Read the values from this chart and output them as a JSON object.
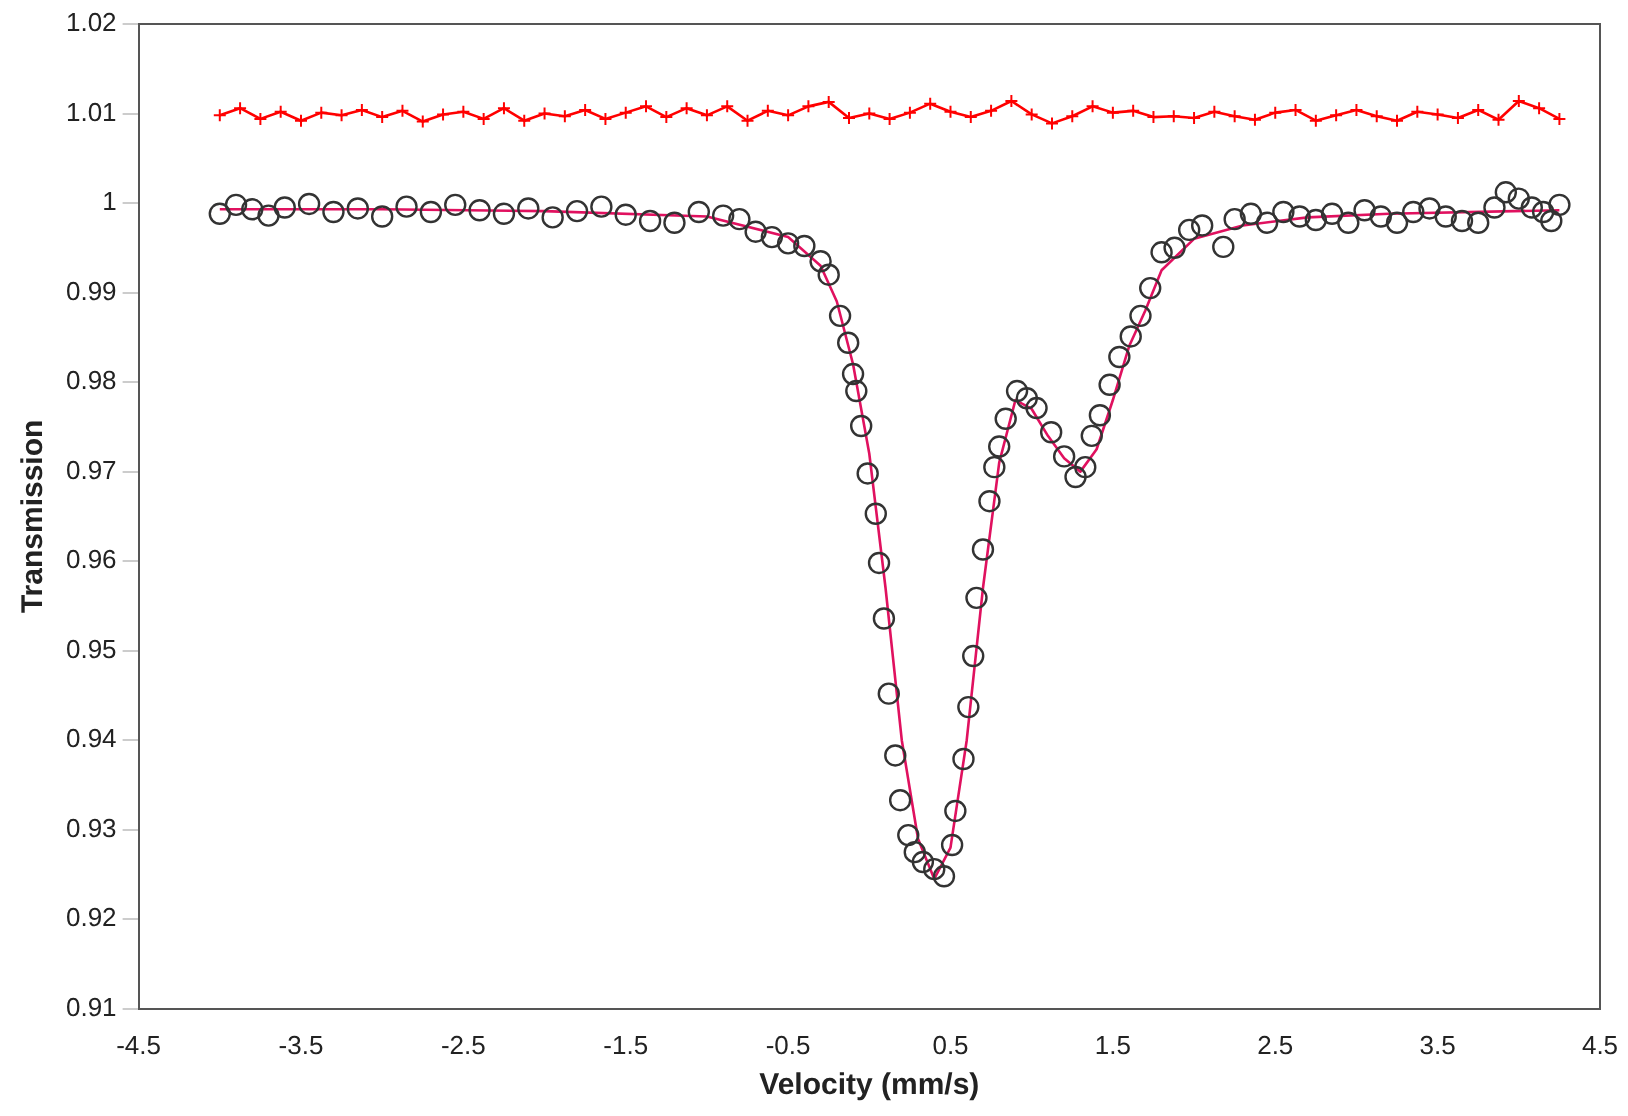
{
  "chart_data": {
    "type": "scatter",
    "xlabel": "Velocity (mm/s)",
    "ylabel": "Transmission",
    "xlim": [
      -4.5,
      4.5
    ],
    "xticks": [
      -4.5,
      -3.5,
      -2.5,
      -1.5,
      -0.5,
      0.5,
      1.5,
      2.5,
      3.5,
      4.5
    ],
    "ylim": [
      0.91,
      1.02
    ],
    "yticks": [
      0.91,
      0.92,
      0.93,
      0.94,
      0.95,
      0.96,
      0.97,
      0.98,
      0.99,
      1,
      1.01,
      1.02
    ],
    "grid": false,
    "legend": false,
    "series": [
      {
        "type": "scatter",
        "marker": "circle",
        "color": "#333333",
        "x": [
          -4.0,
          -3.9,
          -3.8,
          -3.7,
          -3.6,
          -3.45,
          -3.3,
          -3.15,
          -3.0,
          -2.85,
          -2.7,
          -2.55,
          -2.4,
          -2.25,
          -2.1,
          -1.95,
          -1.8,
          -1.65,
          -1.5,
          -1.35,
          -1.2,
          -1.05,
          -0.9,
          -0.8,
          -0.7,
          -0.6,
          -0.5,
          -0.4,
          -0.3,
          -0.25,
          -0.18,
          -0.13,
          -0.1,
          -0.08,
          -0.05,
          -0.01,
          0.04,
          0.06,
          0.09,
          0.12,
          0.16,
          0.19,
          0.24,
          0.28,
          0.33,
          0.4,
          0.46,
          0.51,
          0.53,
          0.58,
          0.61,
          0.64,
          0.66,
          0.7,
          0.74,
          0.77,
          0.8,
          0.84,
          0.91,
          0.97,
          1.03,
          1.12,
          1.2,
          1.27,
          1.33,
          1.37,
          1.42,
          1.48,
          1.54,
          1.61,
          1.67,
          1.73,
          1.8,
          1.88,
          1.97,
          2.05,
          2.18,
          2.25,
          2.35,
          2.45,
          2.55,
          2.65,
          2.75,
          2.85,
          2.95,
          3.05,
          3.15,
          3.25,
          3.35,
          3.45,
          3.55,
          3.65,
          3.75,
          3.85,
          3.92,
          4.0,
          4.08,
          4.15,
          4.2,
          4.25
        ],
        "values": [
          0.9988,
          0.9998,
          0.9993,
          0.9986,
          0.9995,
          0.9999,
          0.999,
          0.9994,
          0.9985,
          0.9996,
          0.999,
          0.9998,
          0.9992,
          0.9988,
          0.9994,
          0.9984,
          0.9991,
          0.9996,
          0.9987,
          0.998,
          0.9978,
          0.999,
          0.9986,
          0.9982,
          0.9968,
          0.9962,
          0.9955,
          0.9952,
          0.9935,
          0.992,
          0.9874,
          0.9844,
          0.9809,
          0.979,
          0.9751,
          0.9698,
          0.9653,
          0.9598,
          0.9536,
          0.9452,
          0.9383,
          0.9333,
          0.9294,
          0.9275,
          0.9264,
          0.9256,
          0.9248,
          0.9283,
          0.9321,
          0.9379,
          0.9437,
          0.9494,
          0.9559,
          0.9613,
          0.9667,
          0.9705,
          0.9728,
          0.9759,
          0.979,
          0.9782,
          0.9771,
          0.9744,
          0.9717,
          0.9694,
          0.9705,
          0.974,
          0.9763,
          0.9797,
          0.9828,
          0.9851,
          0.9874,
          0.9905,
          0.9945,
          0.995,
          0.997,
          0.9975,
          0.9951,
          0.9982,
          0.9988,
          0.9978,
          0.999,
          0.9985,
          0.9981,
          0.9988,
          0.9978,
          0.9992,
          0.9985,
          0.9978,
          0.999,
          0.9994,
          0.9985,
          0.998,
          0.9978,
          0.9995,
          1.0012,
          1.0005,
          0.9995,
          0.999,
          0.998,
          0.9998
        ]
      },
      {
        "type": "line",
        "marker": "none",
        "color": "#e0115f",
        "x": [
          -4.0,
          -3.0,
          -2.0,
          -1.0,
          -0.5,
          -0.3,
          -0.2,
          -0.1,
          0.0,
          0.1,
          0.2,
          0.3,
          0.4,
          0.5,
          0.6,
          0.7,
          0.8,
          0.9,
          1.0,
          1.1,
          1.2,
          1.3,
          1.4,
          1.5,
          1.6,
          1.7,
          1.8,
          2.0,
          2.3,
          2.7,
          3.2,
          4.25
        ],
        "values": [
          0.9993,
          0.9993,
          0.9991,
          0.9985,
          0.9962,
          0.993,
          0.989,
          0.982,
          0.972,
          0.957,
          0.94,
          0.929,
          0.9245,
          0.928,
          0.94,
          0.957,
          0.971,
          0.978,
          0.977,
          0.974,
          0.9715,
          0.97,
          0.9725,
          0.978,
          0.984,
          0.988,
          0.9925,
          0.996,
          0.9975,
          0.9984,
          0.9988,
          0.9992
        ]
      },
      {
        "type": "line",
        "marker": "cross",
        "color": "#ff0000",
        "x": [
          -4.0,
          -3.875,
          -3.75,
          -3.625,
          -3.5,
          -3.375,
          -3.25,
          -3.125,
          -3.0,
          -2.875,
          -2.75,
          -2.625,
          -2.5,
          -2.375,
          -2.25,
          -2.125,
          -2.0,
          -1.875,
          -1.75,
          -1.625,
          -1.5,
          -1.375,
          -1.25,
          -1.125,
          -1.0,
          -0.875,
          -0.75,
          -0.625,
          -0.5,
          -0.375,
          -0.25,
          -0.125,
          0.0,
          0.125,
          0.25,
          0.375,
          0.5,
          0.625,
          0.75,
          0.875,
          1.0,
          1.125,
          1.25,
          1.375,
          1.5,
          1.625,
          1.75,
          1.875,
          2.0,
          2.125,
          2.25,
          2.375,
          2.5,
          2.625,
          2.75,
          2.875,
          3.0,
          3.125,
          3.25,
          3.375,
          3.5,
          3.625,
          3.75,
          3.875,
          4.0,
          4.125,
          4.25
        ],
        "values": [
          1.0098,
          1.0106,
          1.0094,
          1.0102,
          1.0092,
          1.0101,
          1.0098,
          1.0104,
          1.0096,
          1.0103,
          1.0091,
          1.0099,
          1.0102,
          1.0094,
          1.0106,
          1.0092,
          1.01,
          1.0097,
          1.0104,
          1.0094,
          1.0101,
          1.0108,
          1.0096,
          1.0106,
          1.0098,
          1.0108,
          1.0092,
          1.0103,
          1.0098,
          1.0108,
          1.0113,
          1.0095,
          1.01,
          1.0094,
          1.0101,
          1.0111,
          1.0102,
          1.0096,
          1.0103,
          1.0114,
          1.0099,
          1.0089,
          1.0097,
          1.0108,
          1.0101,
          1.0103,
          1.0096,
          1.0097,
          1.0095,
          1.0102,
          1.0097,
          1.0093,
          1.0101,
          1.0104,
          1.0092,
          1.0098,
          1.0104,
          1.0097,
          1.0092,
          1.0102,
          1.0099,
          1.0095,
          1.0104,
          1.0093,
          1.0114,
          1.0106,
          1.0094
        ]
      }
    ]
  }
}
